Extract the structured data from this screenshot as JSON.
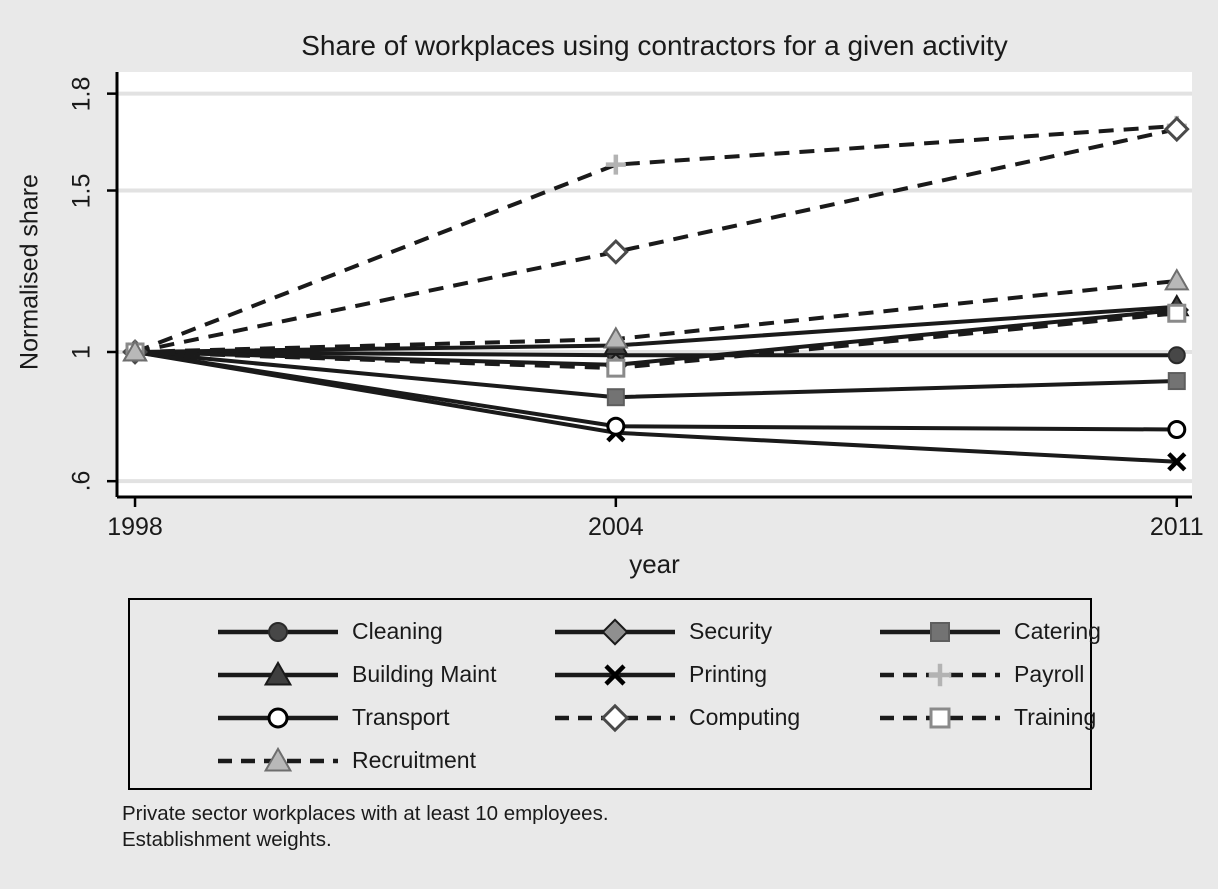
{
  "chart_data": {
    "type": "line",
    "title": "Share of workplaces using contractors for a given activity",
    "xlabel": "year",
    "ylabel": "Normalised share",
    "x": [
      1998,
      2004,
      2011
    ],
    "x_ticks": [
      {
        "value": 1998,
        "label": "1998"
      },
      {
        "value": 2004,
        "label": "2004"
      },
      {
        "value": 2011,
        "label": "2011"
      }
    ],
    "y_ticks": [
      {
        "value": 0.6,
        "label": ".6"
      },
      {
        "value": 1,
        "label": "1"
      },
      {
        "value": 1.5,
        "label": "1.5"
      },
      {
        "value": 1.8,
        "label": "1.8"
      }
    ],
    "xlim": [
      1997.775,
      2011.19
    ],
    "ylim": [
      0.551,
      1.867
    ],
    "grid": true,
    "legend_position": "bottom",
    "series": [
      {
        "name": "Cleaning",
        "line": "solid",
        "marker": "circle",
        "marker_fill": "#474747",
        "marker_stroke": "#2a2a2a",
        "values": [
          1,
          0.99,
          0.99
        ]
      },
      {
        "name": "Security",
        "line": "solid",
        "marker": "diamond",
        "marker_fill": "#8f8f8f",
        "marker_stroke": "#1a1a1a",
        "values": [
          1,
          0.96,
          1.13
        ]
      },
      {
        "name": "Catering",
        "line": "solid",
        "marker": "square",
        "marker_fill": "#737373",
        "marker_stroke": "#5e5e5e",
        "values": [
          1,
          0.86,
          0.91
        ]
      },
      {
        "name": "Building Maint",
        "line": "solid",
        "marker": "triangle",
        "marker_fill": "#3f3f3f",
        "marker_stroke": "#1a1a1a",
        "values": [
          1,
          1.02,
          1.14
        ]
      },
      {
        "name": "Printing",
        "line": "solid",
        "marker": "x",
        "marker_fill": "none",
        "marker_stroke": "#000000",
        "values": [
          1,
          0.75,
          0.66
        ]
      },
      {
        "name": "Payroll",
        "line": "dash",
        "marker": "plus",
        "marker_fill": "none",
        "marker_stroke": "#b3b3b3",
        "values": [
          1,
          1.58,
          1.7
        ]
      },
      {
        "name": "Transport",
        "line": "solid",
        "marker": "circle_open",
        "marker_fill": "#ffffff",
        "marker_stroke": "#000000",
        "values": [
          1,
          0.77,
          0.76
        ]
      },
      {
        "name": "Computing",
        "line": "dash",
        "marker": "diamond_open",
        "marker_fill": "#ffffff",
        "marker_stroke": "#4a4a4a",
        "values": [
          1,
          1.31,
          1.69
        ]
      },
      {
        "name": "Training",
        "line": "dash",
        "marker": "square_open",
        "marker_fill": "#ffffff",
        "marker_stroke": "#8a8a8a",
        "values": [
          1,
          0.95,
          1.12
        ]
      },
      {
        "name": "Recruitment",
        "line": "dash",
        "marker": "triangle",
        "marker_fill": "#b8b8b8",
        "marker_stroke": "#6e6e6e",
        "values": [
          1,
          1.04,
          1.22
        ]
      }
    ],
    "style": {
      "background": "#e9e9e9",
      "plot_background": "#ffffff",
      "grid_color": "#e2e2e2",
      "axis_color": "#000000",
      "line_color": "#1a1a1a"
    }
  },
  "notes": {
    "line1": "Private sector workplaces with at least 10 employees.",
    "line2": "Establishment weights."
  }
}
